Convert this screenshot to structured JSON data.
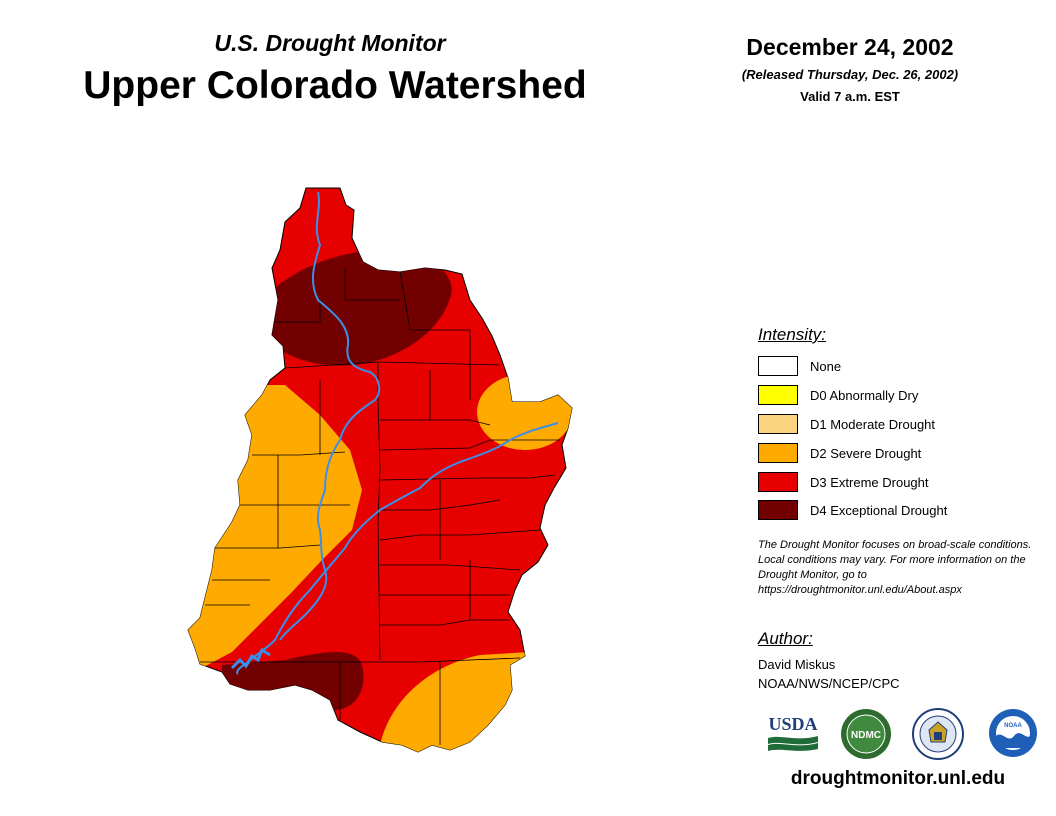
{
  "header": {
    "subtitle": "U.S. Drought Monitor",
    "title": "Upper Colorado Watershed",
    "date": "December 24, 2002",
    "released": "(Released Thursday, Dec. 26, 2002)",
    "valid": "Valid 7 a.m. EST"
  },
  "legend": {
    "title": "Intensity:",
    "items": [
      {
        "label": "None",
        "color": "#ffffff"
      },
      {
        "label": "D0 Abnormally Dry",
        "color": "#ffff00"
      },
      {
        "label": "D1 Moderate Drought",
        "color": "#fcd37f"
      },
      {
        "label": "D2 Severe Drought",
        "color": "#ffaa00"
      },
      {
        "label": "D3 Extreme Drought",
        "color": "#e60000"
      },
      {
        "label": "D4 Exceptional Drought",
        "color": "#730000"
      }
    ]
  },
  "note": "The Drought Monitor focuses on broad-scale conditions. Local conditions may vary. For more information on the Drought Monitor, go to https://droughtmonitor.unl.edu/About.aspx",
  "author": {
    "title": "Author:",
    "name": "David Miskus",
    "org": "NOAA/NWS/NCEP/CPC"
  },
  "logos": {
    "usda": "USDA",
    "ndmc": "NDMC",
    "noaa": "NOAA"
  },
  "footer": {
    "url": "droughtmonitor.unl.edu"
  },
  "colors": {
    "d2": "#ffaa00",
    "d3": "#e60000",
    "d4": "#730000",
    "river": "#3a8fe8"
  }
}
